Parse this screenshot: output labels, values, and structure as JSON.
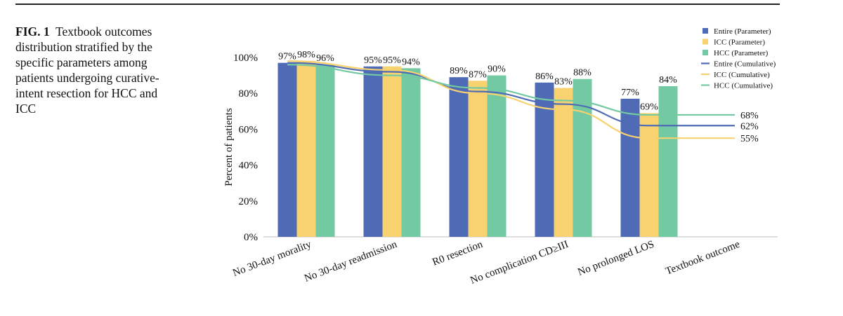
{
  "figure": {
    "label": "FIG. 1",
    "caption": "Textbook outcomes distribution stratified by the specific parameters among patients undergoing curative-intent resection for HCC and ICC"
  },
  "chart_data": {
    "type": "bar",
    "ylabel": "Percent of patients",
    "xlabel": "",
    "ylim": [
      0,
      100
    ],
    "yticks": [
      "0%",
      "20%",
      "40%",
      "60%",
      "80%",
      "100%"
    ],
    "categories": [
      "No 30-day morality",
      "No 30-day readmission",
      "R0 resection",
      "No complication CD≥III",
      "No prolonged LOS",
      "Textbook outcome"
    ],
    "series": [
      {
        "name": "Entire (Parameter)",
        "kind": "bar",
        "color": "#4f6bb5",
        "values": [
          97,
          95,
          89,
          86,
          77,
          null
        ],
        "labels": [
          "97%",
          "95%",
          "89%",
          "86%",
          "77%",
          ""
        ]
      },
      {
        "name": "ICC (Parameter)",
        "kind": "bar",
        "color": "#f8d26e",
        "values": [
          98,
          95,
          87,
          83,
          69,
          null
        ],
        "labels": [
          "98%",
          "95%",
          "87%",
          "83%",
          "69%",
          ""
        ]
      },
      {
        "name": "HCC (Parameter)",
        "kind": "bar",
        "color": "#72c9a2",
        "values": [
          96,
          94,
          90,
          88,
          84,
          null
        ],
        "labels": [
          "96%",
          "94%",
          "90%",
          "88%",
          "84%",
          ""
        ]
      },
      {
        "name": "Entire (Cumulative)",
        "kind": "line",
        "color": "#4f6bb5",
        "values": [
          97,
          92,
          81,
          74,
          62,
          62
        ],
        "end_label": "62%"
      },
      {
        "name": "ICC (Cumulative)",
        "kind": "line",
        "color": "#f8d26e",
        "values": [
          98,
          93,
          80,
          71,
          55,
          55
        ],
        "end_label": "55%"
      },
      {
        "name": "HCC (Cumulative)",
        "kind": "line",
        "color": "#72c9a2",
        "values": [
          96,
          90,
          83,
          76,
          68,
          68
        ],
        "end_label": "68%"
      }
    ],
    "legend_position": "top-right",
    "grid": false
  }
}
